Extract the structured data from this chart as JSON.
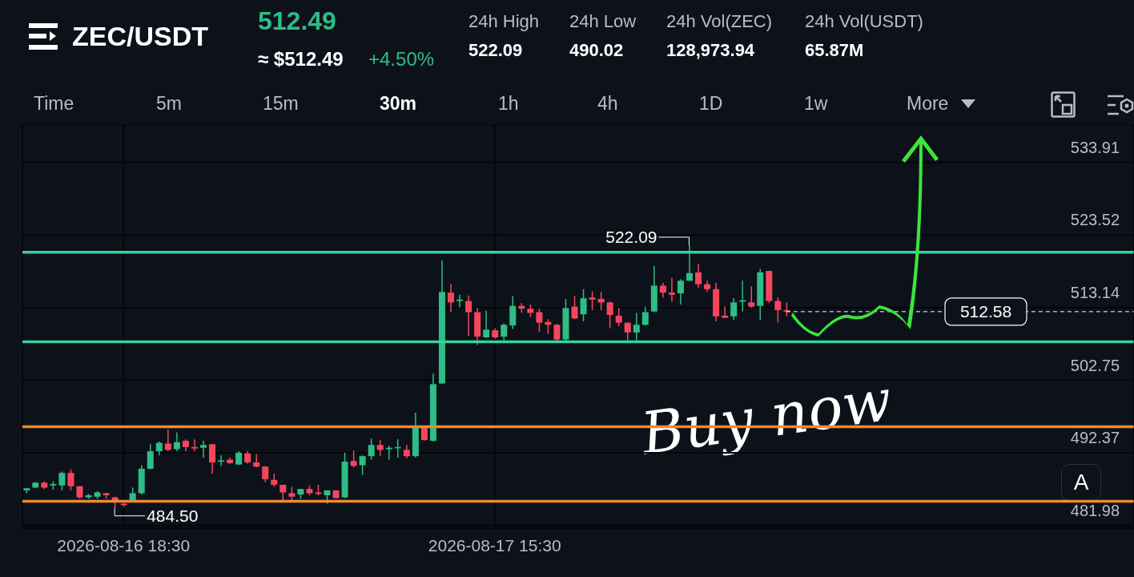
{
  "chart_data": {
    "type": "candlestick",
    "title": "ZEC/USDT",
    "annotations": [
      "512.49",
      "≈ $512.49",
      "+4.50%",
      "24h High",
      "522.09",
      "24h Low",
      "490.02",
      "24h Vol(ZEC)",
      "128,973.94",
      "24h Vol(USDT)",
      "65.87M",
      "Time",
      "5m",
      "15m",
      "30m",
      "1h",
      "4h",
      "1D",
      "1w",
      "More",
      "A",
      "Buy now",
      {
        "text": "522.09",
        "x": "2026-08-18T02:30",
        "y": 522.09
      },
      {
        "text": "484.50",
        "x": "2026-08-16T18:00",
        "y": 484.5
      }
    ],
    "x": [
      "2026-08-16T13:00",
      "2026-08-16T13:30",
      "2026-08-16T14:00",
      "2026-08-16T14:30",
      "2026-08-16T15:00",
      "2026-08-16T15:30",
      "2026-08-16T16:00",
      "2026-08-16T16:30",
      "2026-08-16T17:00",
      "2026-08-16T17:30",
      "2026-08-16T18:00",
      "2026-08-16T18:30",
      "2026-08-16T19:00",
      "2026-08-16T19:30",
      "2026-08-16T20:00",
      "2026-08-16T20:30",
      "2026-08-16T21:00",
      "2026-08-16T21:30",
      "2026-08-16T22:00",
      "2026-08-16T22:30",
      "2026-08-16T23:00",
      "2026-08-16T23:30",
      "2026-08-17T00:00",
      "2026-08-17T00:30",
      "2026-08-17T01:00",
      "2026-08-17T01:30",
      "2026-08-17T02:00",
      "2026-08-17T02:30",
      "2026-08-17T03:00",
      "2026-08-17T03:30",
      "2026-08-17T04:00",
      "2026-08-17T04:30",
      "2026-08-17T05:00",
      "2026-08-17T05:30",
      "2026-08-17T06:00",
      "2026-08-17T06:30",
      "2026-08-17T07:00",
      "2026-08-17T07:30",
      "2026-08-17T08:00",
      "2026-08-17T08:30",
      "2026-08-17T09:00",
      "2026-08-17T09:30",
      "2026-08-17T10:00",
      "2026-08-17T10:30",
      "2026-08-17T11:00",
      "2026-08-17T11:30",
      "2026-08-17T12:00",
      "2026-08-17T12:30",
      "2026-08-17T13:00",
      "2026-08-17T13:30",
      "2026-08-17T14:00",
      "2026-08-17T14:30",
      "2026-08-17T15:00",
      "2026-08-17T15:30",
      "2026-08-17T16:00",
      "2026-08-17T16:30",
      "2026-08-17T17:00",
      "2026-08-17T17:30",
      "2026-08-17T18:00",
      "2026-08-17T18:30",
      "2026-08-17T19:00",
      "2026-08-17T19:30",
      "2026-08-17T20:00",
      "2026-08-17T20:30",
      "2026-08-17T21:00",
      "2026-08-17T21:30",
      "2026-08-17T22:00",
      "2026-08-17T22:30",
      "2026-08-17T23:00",
      "2026-08-17T23:30",
      "2026-08-18T00:00",
      "2026-08-18T00:30",
      "2026-08-18T01:00",
      "2026-08-18T01:30",
      "2026-08-18T02:00",
      "2026-08-18T02:30",
      "2026-08-18T03:00",
      "2026-08-18T03:30",
      "2026-08-18T04:00",
      "2026-08-18T04:30",
      "2026-08-18T05:00",
      "2026-08-18T05:30",
      "2026-08-18T06:00",
      "2026-08-18T06:30",
      "2026-08-18T07:00",
      "2026-08-18T07:30",
      "2026-08-18T08:00"
    ],
    "ohlc": [
      [
        487.0,
        487.3,
        486.6,
        487.3
      ],
      [
        487.4,
        488.2,
        487.3,
        488.1
      ],
      [
        488.1,
        488.3,
        487.2,
        487.4
      ],
      [
        487.7,
        488.3,
        487.1,
        487.9
      ],
      [
        487.7,
        489.7,
        487.0,
        489.5
      ],
      [
        489.5,
        490.0,
        487.0,
        487.6
      ],
      [
        487.6,
        487.6,
        485.8,
        486.0
      ],
      [
        486.0,
        486.5,
        485.8,
        486.3
      ],
      [
        486.1,
        486.9,
        485.8,
        486.7
      ],
      [
        486.6,
        486.6,
        485.8,
        486.3
      ],
      [
        486.0,
        486.1,
        484.5,
        485.4
      ],
      [
        485.1,
        485.2,
        484.6,
        484.9
      ],
      [
        485.6,
        487.4,
        485.5,
        486.6
      ],
      [
        486.6,
        490.6,
        486.4,
        490.1
      ],
      [
        490.1,
        493.6,
        490.0,
        492.6
      ],
      [
        492.6,
        494.0,
        492.0,
        493.8
      ],
      [
        493.7,
        495.7,
        492.6,
        492.8
      ],
      [
        492.9,
        495.3,
        492.6,
        493.9
      ],
      [
        494.1,
        494.3,
        492.6,
        493.2
      ],
      [
        493.2,
        494.3,
        492.6,
        493.0
      ],
      [
        493.1,
        494.1,
        491.7,
        493.5
      ],
      [
        493.6,
        493.6,
        489.4,
        491.0
      ],
      [
        491.1,
        492.0,
        490.5,
        491.3
      ],
      [
        491.4,
        491.7,
        490.8,
        490.9
      ],
      [
        490.7,
        492.6,
        490.6,
        492.4
      ],
      [
        492.3,
        492.6,
        490.8,
        491.0
      ],
      [
        491.0,
        492.2,
        490.3,
        490.4
      ],
      [
        490.4,
        490.5,
        488.2,
        488.6
      ],
      [
        488.5,
        489.4,
        487.5,
        487.8
      ],
      [
        487.8,
        487.8,
        485.6,
        486.7
      ],
      [
        486.6,
        487.5,
        485.5,
        486.1
      ],
      [
        486.4,
        487.2,
        485.8,
        487.2
      ],
      [
        487.2,
        487.7,
        486.3,
        486.6
      ],
      [
        486.7,
        487.8,
        486.3,
        486.5
      ],
      [
        486.3,
        487.0,
        485.1,
        487.0
      ],
      [
        487.0,
        487.0,
        485.8,
        485.9
      ],
      [
        486.0,
        492.4,
        485.9,
        491.1
      ],
      [
        491.2,
        492.7,
        490.3,
        490.5
      ],
      [
        490.6,
        492.0,
        489.2,
        491.9
      ],
      [
        491.9,
        494.4,
        491.4,
        493.5
      ],
      [
        493.5,
        494.2,
        491.9,
        492.8
      ],
      [
        492.9,
        493.4,
        491.4,
        493.1
      ],
      [
        493.1,
        494.3,
        491.7,
        493.2
      ],
      [
        492.8,
        493.5,
        491.6,
        491.9
      ],
      [
        491.9,
        498.1,
        491.7,
        496.0
      ],
      [
        496.0,
        496.1,
        494.1,
        494.2
      ],
      [
        494.1,
        503.7,
        494.0,
        502.2
      ],
      [
        502.3,
        519.9,
        502.2,
        515.4
      ],
      [
        515.3,
        516.5,
        512.5,
        513.9
      ],
      [
        514.1,
        515.0,
        513.2,
        514.3
      ],
      [
        514.1,
        514.9,
        509.1,
        512.5
      ],
      [
        512.5,
        513.1,
        507.8,
        509.0
      ],
      [
        508.9,
        512.7,
        508.8,
        510.0
      ],
      [
        509.9,
        510.2,
        508.7,
        508.9
      ],
      [
        509.0,
        510.9,
        508.5,
        510.7
      ],
      [
        510.6,
        514.8,
        510.1,
        513.4
      ],
      [
        513.4,
        513.8,
        512.4,
        513.0
      ],
      [
        513.0,
        513.6,
        511.8,
        512.4
      ],
      [
        512.5,
        513.0,
        509.7,
        511.0
      ],
      [
        511.1,
        511.5,
        509.4,
        510.7
      ],
      [
        510.7,
        510.8,
        508.4,
        508.6
      ],
      [
        508.6,
        514.4,
        508.4,
        513.1
      ],
      [
        513.3,
        514.8,
        511.5,
        511.6
      ],
      [
        512.2,
        515.8,
        511.2,
        514.5
      ],
      [
        514.6,
        515.5,
        512.8,
        514.3
      ],
      [
        514.4,
        515.4,
        512.8,
        513.9
      ],
      [
        513.9,
        514.0,
        510.2,
        512.1
      ],
      [
        512.0,
        513.1,
        510.5,
        511.0
      ],
      [
        511.0,
        511.0,
        508.5,
        509.6
      ],
      [
        509.6,
        512.4,
        508.5,
        510.7
      ],
      [
        510.7,
        513.3,
        510.6,
        512.5
      ],
      [
        512.6,
        519.1,
        512.5,
        516.3
      ],
      [
        516.3,
        516.7,
        514.6,
        515.3
      ],
      [
        515.3,
        517.4,
        514.0,
        515.0
      ],
      [
        515.2,
        517.2,
        513.6,
        517.0
      ],
      [
        517.0,
        522.09,
        517.0,
        518.1
      ],
      [
        518.2,
        519.4,
        516.0,
        516.5
      ],
      [
        516.5,
        517.0,
        515.4,
        515.8
      ],
      [
        515.8,
        516.7,
        511.2,
        511.9
      ],
      [
        512.0,
        513.3,
        511.7,
        511.7
      ],
      [
        511.9,
        514.5,
        511.4,
        513.9
      ],
      [
        514.0,
        517.0,
        512.6,
        514.2
      ],
      [
        513.9,
        516.2,
        513.1,
        513.3
      ],
      [
        513.4,
        518.7,
        511.4,
        518.2
      ],
      [
        518.4,
        518.4,
        513.8,
        514.1
      ],
      [
        514.1,
        514.6,
        511.0,
        512.8
      ],
      [
        512.8,
        513.9,
        511.9,
        512.58
      ]
    ],
    "colors": [
      "#2ebd85",
      "#2ebd85",
      "#f6465d",
      "#2ebd85",
      "#2ebd85",
      "#f6465d",
      "#f6465d",
      "#2ebd85",
      "#2ebd85",
      "#f6465d",
      "#f6465d",
      "#f6465d",
      "#2ebd85",
      "#2ebd85",
      "#2ebd85",
      "#2ebd85",
      "#f6465d",
      "#2ebd85",
      "#f6465d",
      "#f6465d",
      "#2ebd85",
      "#f6465d",
      "#2ebd85",
      "#f6465d",
      "#2ebd85",
      "#f6465d",
      "#f6465d",
      "#f6465d",
      "#f6465d",
      "#f6465d",
      "#f6465d",
      "#2ebd85",
      "#f6465d",
      "#f6465d",
      "#2ebd85",
      "#f6465d",
      "#2ebd85",
      "#f6465d",
      "#2ebd85",
      "#2ebd85",
      "#f6465d",
      "#2ebd85",
      "#2ebd85",
      "#f6465d",
      "#2ebd85",
      "#f6465d",
      "#2ebd85",
      "#2ebd85",
      "#f6465d",
      "#2ebd85",
      "#f6465d",
      "#f6465d",
      "#2ebd85",
      "#f6465d",
      "#2ebd85",
      "#2ebd85",
      "#f6465d",
      "#f6465d",
      "#f6465d",
      "#f6465d",
      "#f6465d",
      "#2ebd85",
      "#f6465d",
      "#2ebd85",
      "#f6465d",
      "#f6465d",
      "#f6465d",
      "#f6465d",
      "#f6465d",
      "#2ebd85",
      "#2ebd85",
      "#2ebd85",
      "#f6465d",
      "#f6465d",
      "#2ebd85",
      "#2ebd85",
      "#f6465d",
      "#f6465d",
      "#f6465d",
      "#f6465d",
      "#2ebd85",
      "#2ebd85",
      "#f6465d",
      "#2ebd85",
      "#f6465d",
      "#f6465d",
      "#f6465d"
    ],
    "xlim": [
      "2026-08-16T12:47",
      "2026-08-19T03:40"
    ],
    "xticks": [
      {
        "value": "2026-08-16T18:30",
        "label": "2026-08-16 18:30"
      },
      {
        "value": "2026-08-17T15:30",
        "label": "2026-08-17 15:30"
      }
    ],
    "ylim": [
      481.6,
      539.4
    ],
    "yticks": [
      481.98,
      492.37,
      502.75,
      513.14,
      523.52,
      533.91
    ],
    "grid": true,
    "ref_lines": [
      {
        "axis": "y",
        "value": 521.08,
        "color": "#35d39a"
      },
      {
        "axis": "y",
        "value": 508.26,
        "color": "#35d39a"
      },
      {
        "axis": "y",
        "value": 496.12,
        "color": "#f08a30"
      },
      {
        "axis": "y",
        "value": 485.45,
        "color": "#f08a30"
      },
      {
        "axis": "y",
        "value": 512.58,
        "label": "512.58",
        "color": "#ffffff",
        "line_style": "dashed"
      }
    ]
  }
}
